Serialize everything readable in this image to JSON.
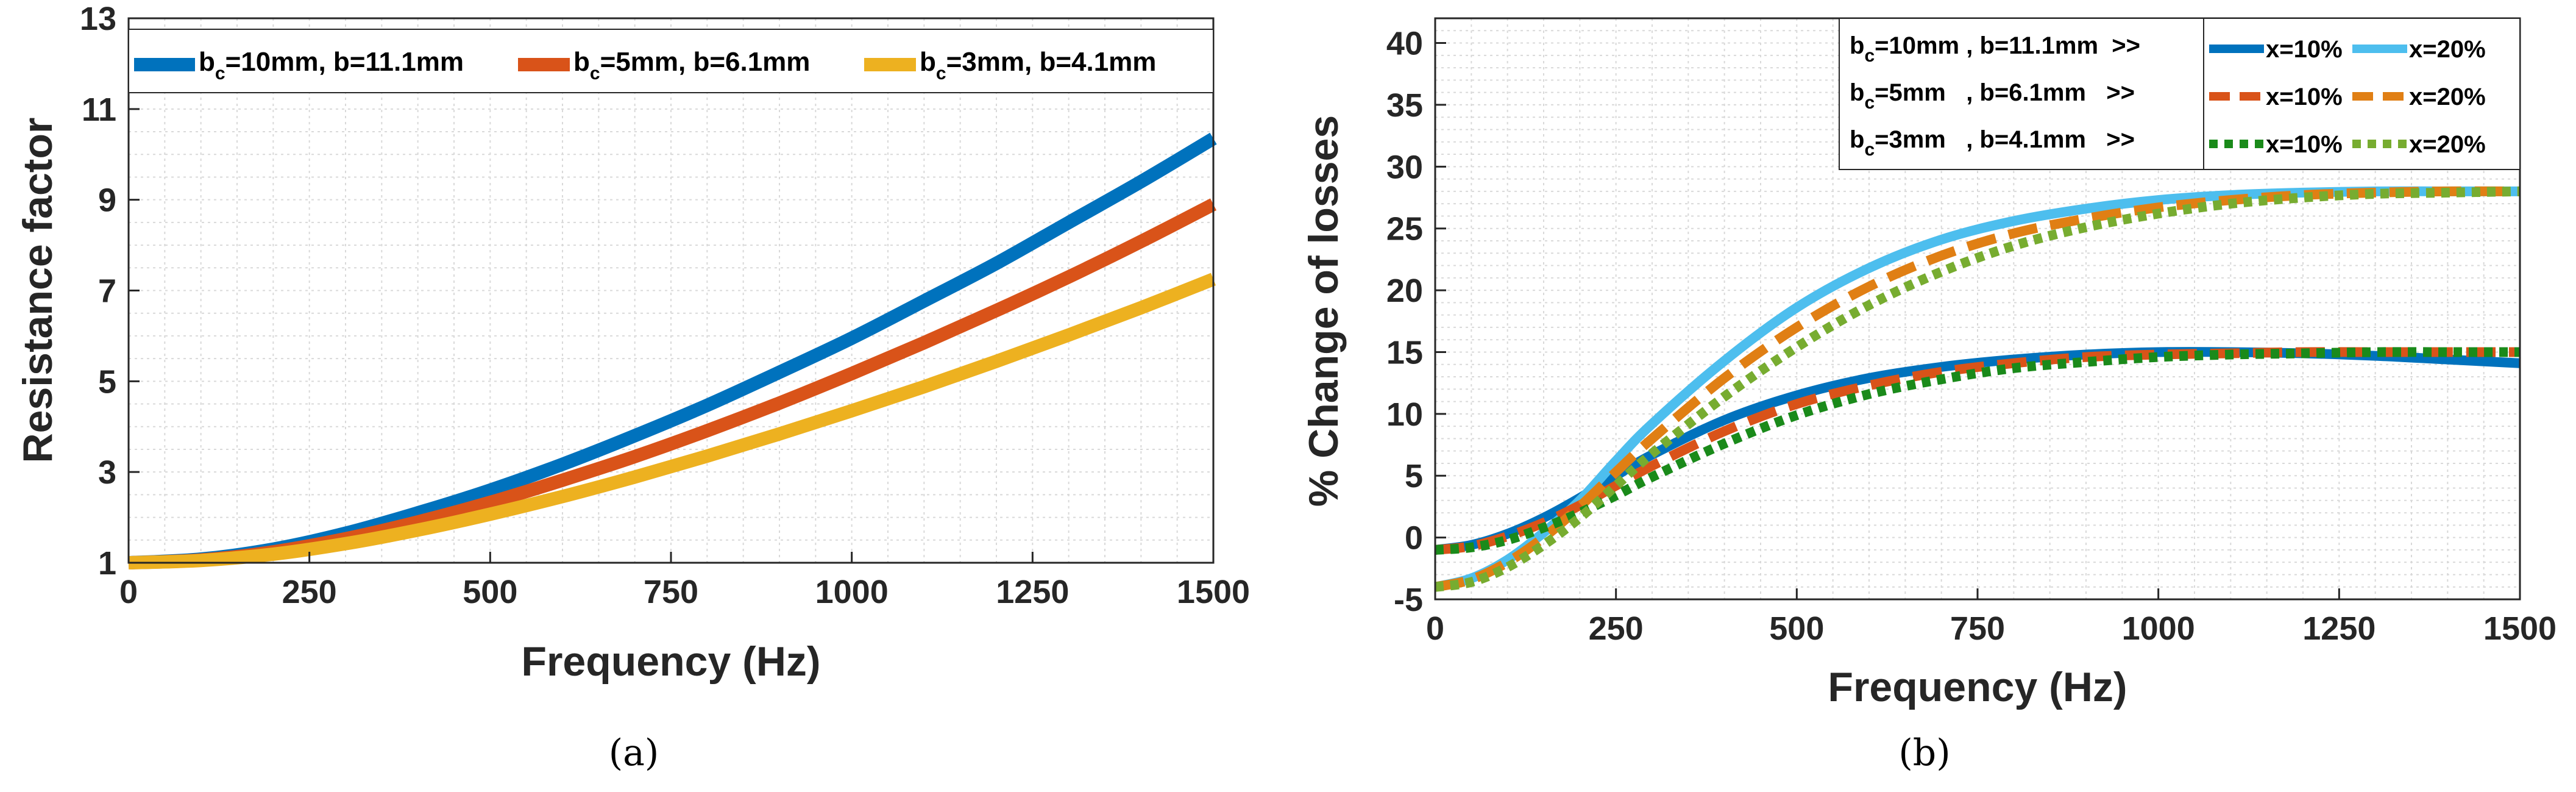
{
  "chart_data": [
    {
      "type": "line",
      "panel_label": "(a)",
      "xlabel": "Frequency (Hz)",
      "ylabel": "Resistance factor",
      "xlim": [
        0,
        1500
      ],
      "ylim": [
        1,
        13
      ],
      "xticks": [
        "0",
        "250",
        "500",
        "750",
        "1000",
        "1250",
        "1500"
      ],
      "yticks": [
        "1",
        "3",
        "5",
        "7",
        "9",
        "11",
        "13"
      ],
      "grid": true,
      "legend_position": "top",
      "series": [
        {
          "name_main": "b",
          "name_sub": "c",
          "name_rest": "=10mm, b=11.1mm",
          "color": "#0072BD",
          "x": [
            0,
            100,
            200,
            300,
            400,
            500,
            600,
            700,
            800,
            900,
            1000,
            1100,
            1200,
            1300,
            1400,
            1500
          ],
          "values": [
            1.0,
            1.08,
            1.3,
            1.65,
            2.1,
            2.6,
            3.17,
            3.8,
            4.47,
            5.2,
            5.95,
            6.77,
            7.6,
            8.5,
            9.4,
            10.35
          ]
        },
        {
          "name_main": "b",
          "name_sub": "c",
          "name_rest": "=5mm, b=6.1mm",
          "color": "#D95319",
          "x": [
            0,
            100,
            200,
            300,
            400,
            500,
            600,
            700,
            800,
            900,
            1000,
            1100,
            1200,
            1300,
            1400,
            1500
          ],
          "values": [
            1.0,
            1.06,
            1.24,
            1.53,
            1.9,
            2.33,
            2.82,
            3.34,
            3.91,
            4.52,
            5.17,
            5.85,
            6.56,
            7.3,
            8.08,
            8.9
          ]
        },
        {
          "name_main": "b",
          "name_sub": "c",
          "name_rest": "=3mm, b=4.1mm",
          "color": "#EDB120",
          "x": [
            0,
            100,
            200,
            300,
            400,
            500,
            600,
            700,
            800,
            900,
            1000,
            1100,
            1200,
            1300,
            1400,
            1500
          ],
          "values": [
            1.0,
            1.05,
            1.19,
            1.42,
            1.72,
            2.07,
            2.46,
            2.89,
            3.35,
            3.84,
            4.35,
            4.88,
            5.44,
            6.02,
            6.62,
            7.25
          ]
        }
      ]
    },
    {
      "type": "line",
      "panel_label": "(b)",
      "xlabel": "Frequency (Hz)",
      "ylabel": "% Change of losses",
      "xlim": [
        0,
        1500
      ],
      "ylim": [
        -5,
        42
      ],
      "xticks": [
        "0",
        "250",
        "500",
        "750",
        "1000",
        "1250",
        "1500"
      ],
      "yticks": [
        "-5",
        "0",
        "5",
        "10",
        "15",
        "20",
        "25",
        "30",
        "35",
        "40"
      ],
      "grid": true,
      "legend_position": "top-right",
      "legend_rows": [
        {
          "main": "b",
          "sub": "c",
          "rest": "=10mm , b=11.1mm  >>"
        },
        {
          "main": "b",
          "sub": "c",
          "rest": "=5mm   , b=6.1mm   >>"
        },
        {
          "main": "b",
          "sub": "c",
          "rest": "=3mm   , b=4.1mm   >>"
        }
      ],
      "series": [
        {
          "name": "x=10%",
          "color": "#0072BD",
          "style": "solid",
          "x": [
            0,
            50,
            100,
            150,
            200,
            250,
            300,
            400,
            500,
            600,
            700,
            800,
            900,
            1000,
            1100,
            1200,
            1300,
            1400,
            1500
          ],
          "values": [
            -1,
            -0.6,
            0.3,
            1.6,
            3.2,
            5.0,
            6.7,
            9.5,
            11.5,
            12.9,
            13.8,
            14.4,
            14.8,
            15.0,
            15.0,
            14.9,
            14.7,
            14.4,
            14.1
          ]
        },
        {
          "name": "x=20%",
          "color": "#4DBEEE",
          "style": "solid",
          "x": [
            0,
            50,
            100,
            150,
            200,
            250,
            300,
            400,
            500,
            600,
            700,
            800,
            900,
            1000,
            1100,
            1200,
            1300,
            1400,
            1500
          ],
          "values": [
            -4,
            -3.3,
            -1.8,
            0.4,
            3.0,
            6.2,
            9.2,
            14.3,
            18.6,
            21.8,
            24.1,
            25.6,
            26.6,
            27.3,
            27.7,
            27.9,
            28.0,
            28.0,
            28.0
          ]
        },
        {
          "name": "x=10%",
          "color": "#D95319",
          "style": "dash",
          "x": [
            0,
            50,
            100,
            150,
            200,
            250,
            300,
            400,
            500,
            600,
            700,
            800,
            900,
            1000,
            1100,
            1200,
            1300,
            1400,
            1500
          ],
          "values": [
            -1,
            -0.7,
            0.1,
            1.2,
            2.6,
            4.2,
            5.8,
            8.6,
            10.8,
            12.3,
            13.4,
            14.1,
            14.6,
            14.8,
            14.9,
            15.0,
            15.0,
            15.0,
            15.0
          ]
        },
        {
          "name": "x=20%",
          "color": "#E07F14",
          "style": "dash",
          "x": [
            0,
            50,
            100,
            150,
            200,
            250,
            300,
            400,
            500,
            600,
            700,
            800,
            900,
            1000,
            1100,
            1200,
            1300,
            1400,
            1500
          ],
          "values": [
            -4,
            -3.4,
            -2.0,
            0.0,
            2.5,
            5.3,
            8.0,
            12.9,
            17.0,
            20.3,
            22.8,
            24.6,
            25.8,
            26.7,
            27.3,
            27.7,
            27.9,
            28.0,
            28.0
          ]
        },
        {
          "name": "x=10%",
          "color": "#1A8A1A",
          "style": "dot",
          "x": [
            0,
            50,
            100,
            150,
            200,
            250,
            300,
            400,
            500,
            600,
            700,
            800,
            900,
            1000,
            1100,
            1200,
            1300,
            1400,
            1500
          ],
          "values": [
            -1,
            -0.8,
            -0.2,
            0.8,
            2.0,
            3.4,
            4.9,
            7.6,
            9.9,
            11.6,
            12.8,
            13.7,
            14.2,
            14.6,
            14.8,
            14.9,
            15.0,
            15.0,
            15.0
          ]
        },
        {
          "name": "x=20%",
          "color": "#77AC30",
          "style": "dot",
          "x": [
            0,
            50,
            100,
            150,
            200,
            250,
            300,
            400,
            500,
            600,
            700,
            800,
            900,
            1000,
            1100,
            1200,
            1300,
            1400,
            1500
          ],
          "values": [
            -4,
            -3.6,
            -2.4,
            -0.6,
            1.6,
            4.2,
            6.8,
            11.4,
            15.4,
            18.8,
            21.5,
            23.6,
            25.1,
            26.2,
            27.0,
            27.5,
            27.8,
            27.9,
            28.0
          ]
        }
      ]
    }
  ]
}
